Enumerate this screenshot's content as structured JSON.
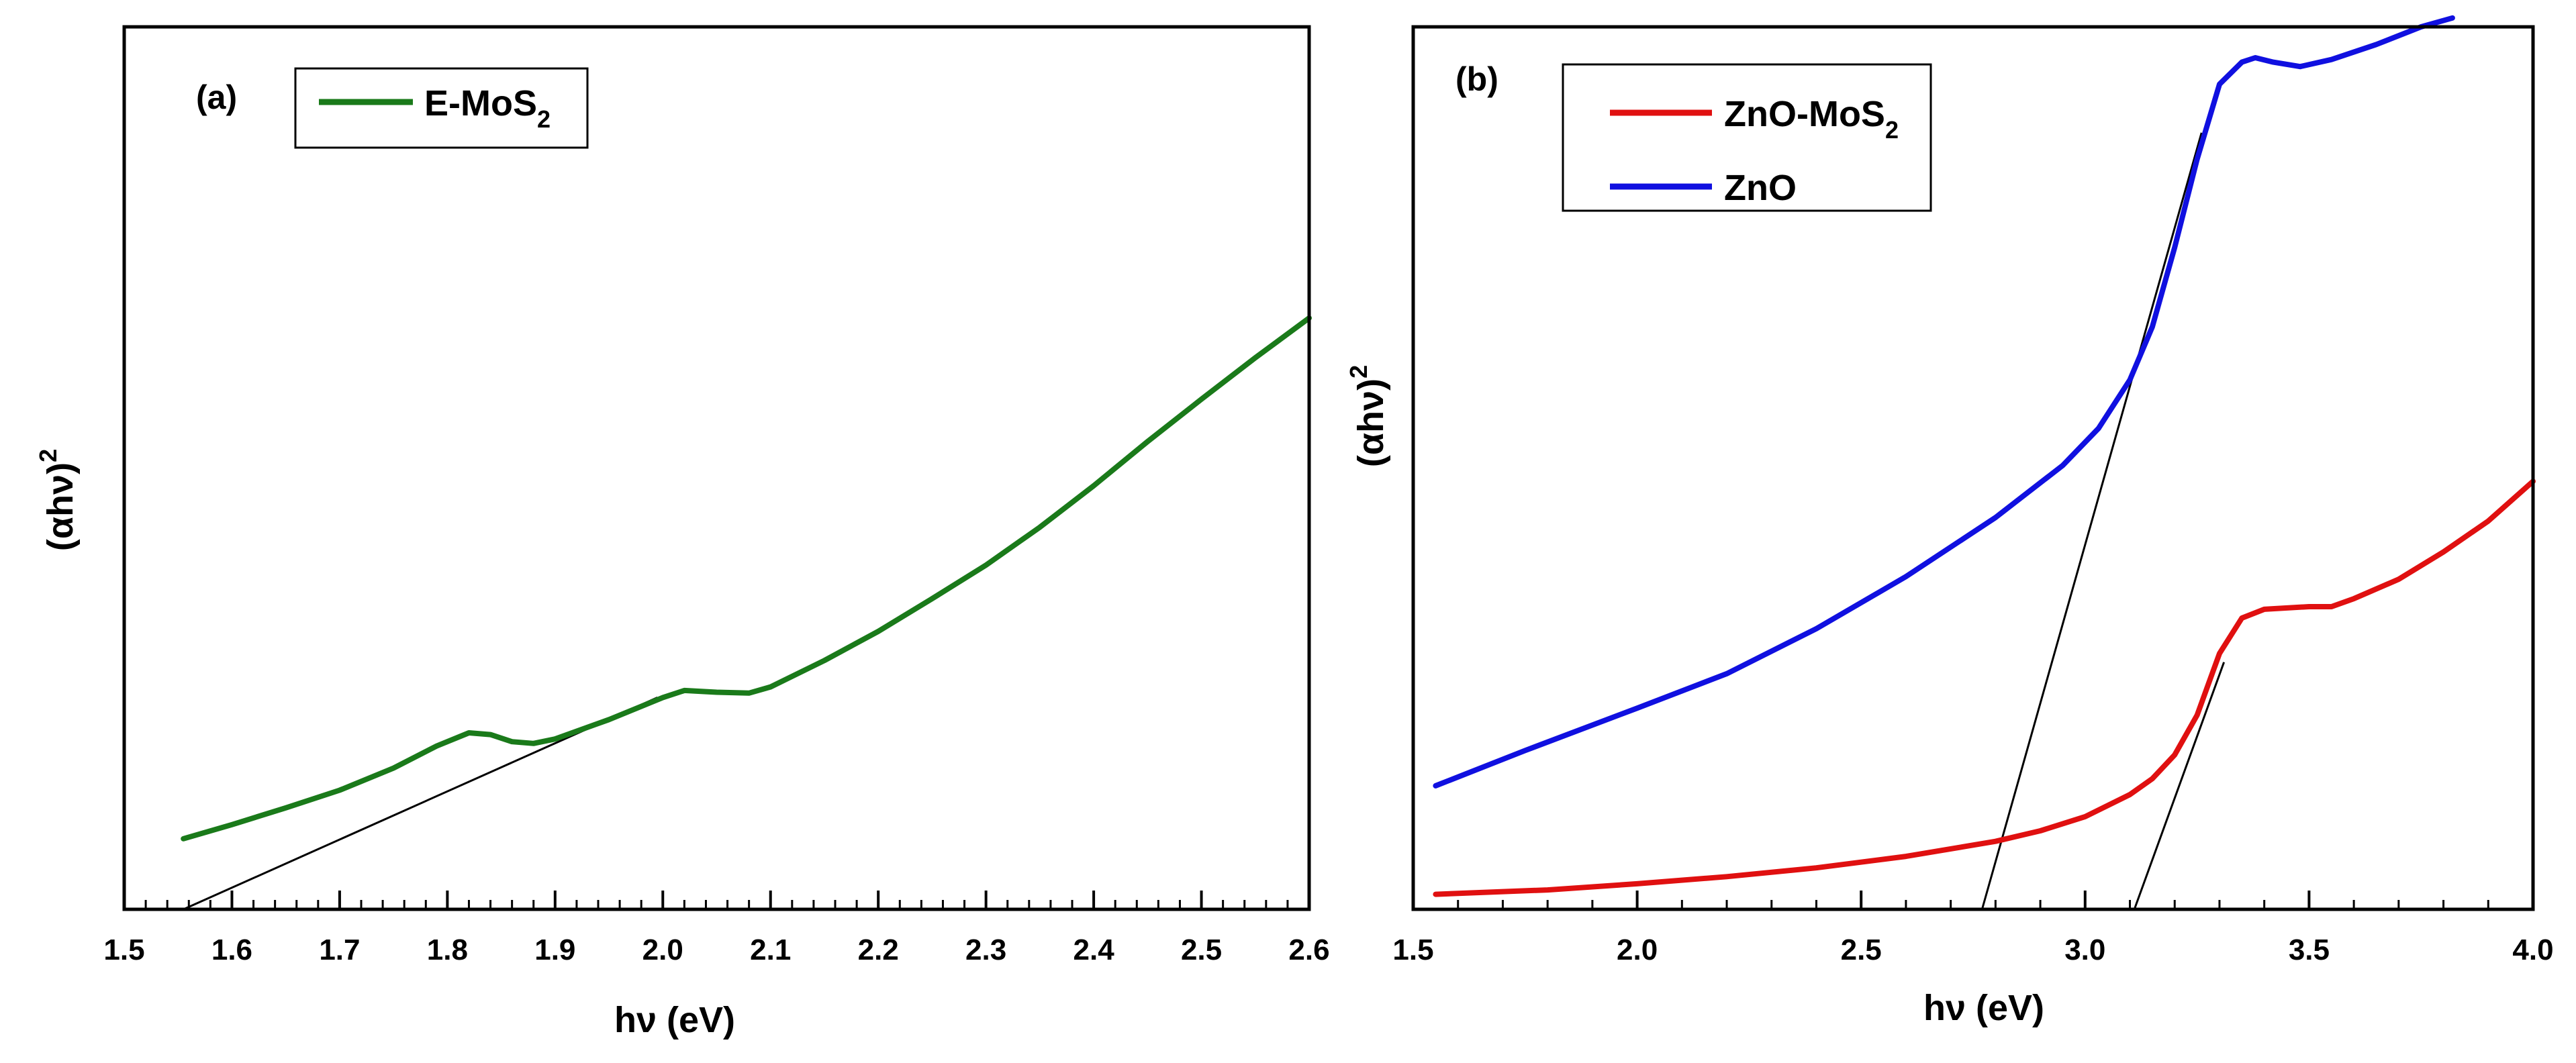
{
  "chart_data": [
    {
      "type": "line",
      "panel_label": "(a)",
      "xlabel": "hν (eV)",
      "ylabel": "(αhν)²",
      "ylabel_main": "(αhν)",
      "ylabel_sup": "2",
      "xlim": [
        1.5,
        2.6
      ],
      "ylim": [
        0,
        1
      ],
      "xticks": [
        1.5,
        1.6,
        1.7,
        1.8,
        1.9,
        2.0,
        2.1,
        2.2,
        2.3,
        2.4,
        2.5,
        2.6
      ],
      "xtick_labels": [
        "1.5",
        "1.6",
        "1.7",
        "1.8",
        "1.9",
        "2.0",
        "2.1",
        "2.2",
        "2.3",
        "2.4",
        "2.5",
        "2.6"
      ],
      "minor_step": 0.02,
      "y_tick_labels_shown": false,
      "legend_position": "top-left",
      "series": [
        {
          "name": "E-MoS2",
          "legend_main": "E-MoS",
          "legend_sub": "2",
          "color": "#1a7a1a",
          "x": [
            1.555,
            1.6,
            1.65,
            1.7,
            1.75,
            1.79,
            1.82,
            1.84,
            1.86,
            1.88,
            1.9,
            1.95,
            2.0,
            2.02,
            2.05,
            2.08,
            2.1,
            2.15,
            2.2,
            2.25,
            2.3,
            2.35,
            2.4,
            2.45,
            2.5,
            2.55,
            2.6
          ],
          "y": [
            0.08,
            0.096,
            0.115,
            0.135,
            0.16,
            0.185,
            0.2,
            0.198,
            0.19,
            0.188,
            0.193,
            0.215,
            0.24,
            0.248,
            0.246,
            0.245,
            0.252,
            0.282,
            0.315,
            0.352,
            0.39,
            0.433,
            0.48,
            0.53,
            0.578,
            0.625,
            0.67
          ]
        }
      ],
      "fit_lines": [
        {
          "x": [
            1.555,
            1.995
          ],
          "y": [
            0.0,
            0.24
          ],
          "color": "#000000"
        }
      ]
    },
    {
      "type": "line",
      "panel_label": "(b)",
      "xlabel": "hν (eV)",
      "ylabel": "(αhν)²",
      "ylabel_main": "(αhν)",
      "ylabel_sup": "2",
      "xlim": [
        1.5,
        4.0
      ],
      "ylim": [
        0,
        1
      ],
      "xticks": [
        1.5,
        2.0,
        2.5,
        3.0,
        3.5,
        4.0
      ],
      "xtick_labels": [
        "1.5",
        "2.0",
        "2.5",
        "3.0",
        "3.5",
        "4.0"
      ],
      "minor_step": 0.1,
      "y_tick_labels_shown": false,
      "legend_position": "top-center",
      "series": [
        {
          "name": "ZnO-MoS2",
          "legend_main": "ZnO-MoS",
          "legend_sub": "2",
          "color": "#e01010",
          "x": [
            1.55,
            1.8,
            2.0,
            2.2,
            2.4,
            2.6,
            2.8,
            2.9,
            3.0,
            3.1,
            3.15,
            3.2,
            3.25,
            3.3,
            3.35,
            3.4,
            3.5,
            3.55,
            3.6,
            3.7,
            3.8,
            3.9,
            4.0
          ],
          "y": [
            0.017,
            0.022,
            0.029,
            0.037,
            0.047,
            0.06,
            0.077,
            0.089,
            0.105,
            0.13,
            0.148,
            0.175,
            0.22,
            0.29,
            0.33,
            0.34,
            0.343,
            0.343,
            0.352,
            0.374,
            0.405,
            0.44,
            0.485
          ]
        },
        {
          "name": "ZnO",
          "legend_main": "ZnO",
          "legend_sub": "",
          "color": "#1010e0",
          "x": [
            1.55,
            1.75,
            2.0,
            2.2,
            2.4,
            2.6,
            2.8,
            2.95,
            3.03,
            3.1,
            3.15,
            3.2,
            3.25,
            3.3,
            3.35,
            3.38,
            3.42,
            3.48,
            3.55,
            3.65,
            3.75,
            3.82
          ],
          "y": [
            0.14,
            0.18,
            0.228,
            0.267,
            0.318,
            0.377,
            0.444,
            0.503,
            0.545,
            0.6,
            0.66,
            0.75,
            0.85,
            0.935,
            0.96,
            0.965,
            0.96,
            0.955,
            0.963,
            0.98,
            1.0,
            1.01
          ]
        }
      ],
      "fit_lines": [
        {
          "x": [
            2.77,
            3.26
          ],
          "y": [
            0.0,
            0.88
          ],
          "color": "#000000"
        },
        {
          "x": [
            3.11,
            3.31
          ],
          "y": [
            0.0,
            0.28
          ],
          "color": "#000000"
        }
      ]
    }
  ]
}
